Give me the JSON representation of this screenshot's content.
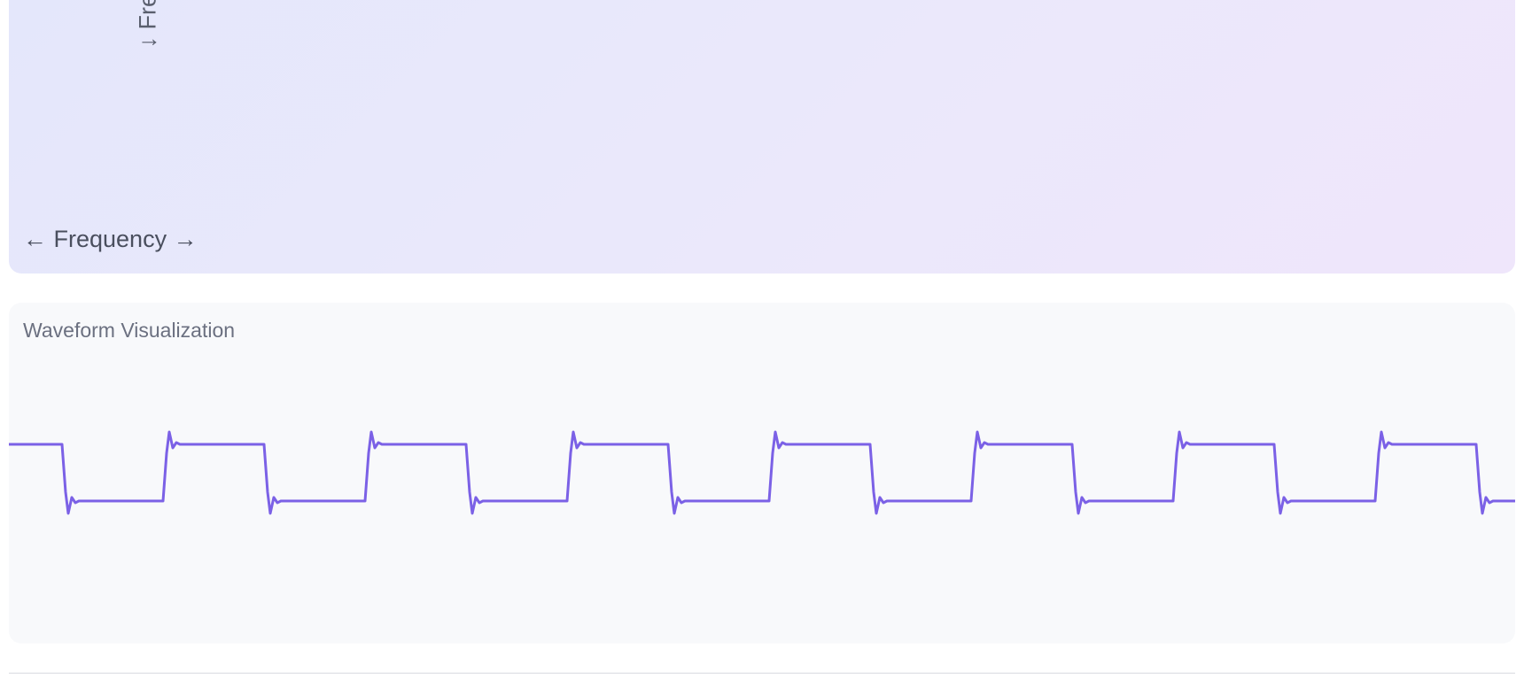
{
  "spectrum": {
    "y_axis_label": "↓ Frequency →",
    "y_arrow": "↓",
    "x_axis_label": "← Frequency →"
  },
  "waveform": {
    "title": "Waveform Visualization",
    "line_color": "#7b61e6",
    "shape": "square-wave-with-ringing"
  }
}
